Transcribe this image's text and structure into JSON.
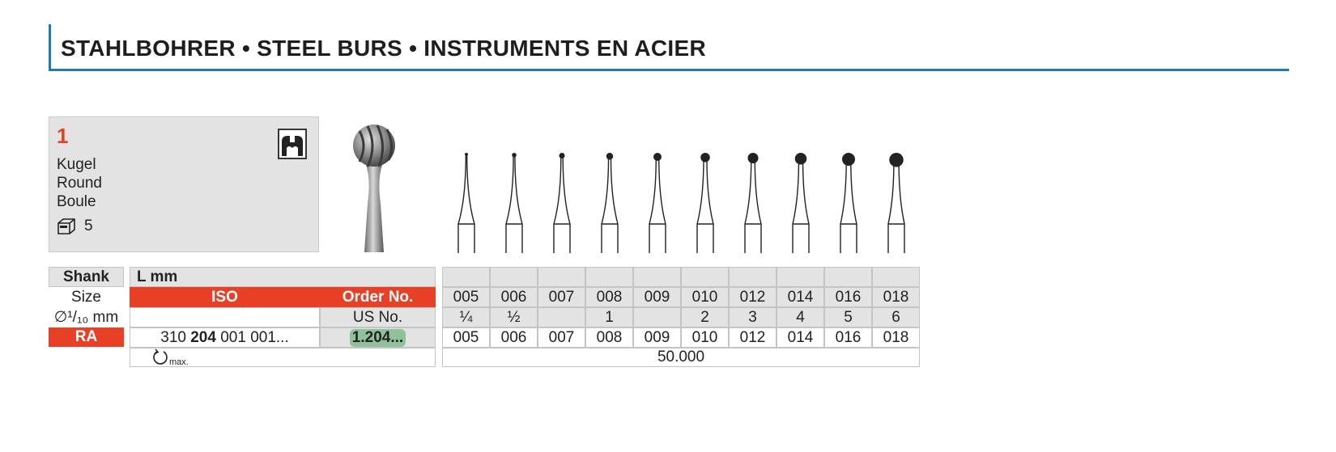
{
  "header": {
    "title": "STAHLBOHRER  •  STEEL BURS  •  INSTRUMENTS EN ACIER"
  },
  "product": {
    "number": "1",
    "names": [
      "Kugel",
      "Round",
      "Boule"
    ],
    "pack_quantity": "5",
    "shank_icon": "shank-ra-icon",
    "pack_icon": "package-icon"
  },
  "table": {
    "labels": {
      "shank": "Shank",
      "size": "Size",
      "diameter": "∅¹/₁₀ mm",
      "shank_type": "RA"
    },
    "l_mm": "L mm",
    "iso_label": "ISO",
    "order_label": "Order No.",
    "us_label": "US No.",
    "iso_value": {
      "prefix": "310 ",
      "bold": "204",
      "suffix": " 001 001..."
    },
    "order_value": "1.204...",
    "rpm_label": "max.",
    "sizes": [
      "005",
      "006",
      "007",
      "008",
      "009",
      "010",
      "012",
      "014",
      "016",
      "018"
    ],
    "us_numbers": [
      "¼",
      "½",
      "",
      "1",
      "",
      "2",
      "3",
      "4",
      "5",
      "6"
    ],
    "diameters": [
      "005",
      "006",
      "007",
      "008",
      "009",
      "010",
      "012",
      "014",
      "016",
      "018"
    ],
    "rpm": "50.000"
  },
  "colors": {
    "accent": "#1d7ab8",
    "red": "#e84026",
    "grey": "#e3e3e3",
    "highlight": "#8fc29a"
  }
}
